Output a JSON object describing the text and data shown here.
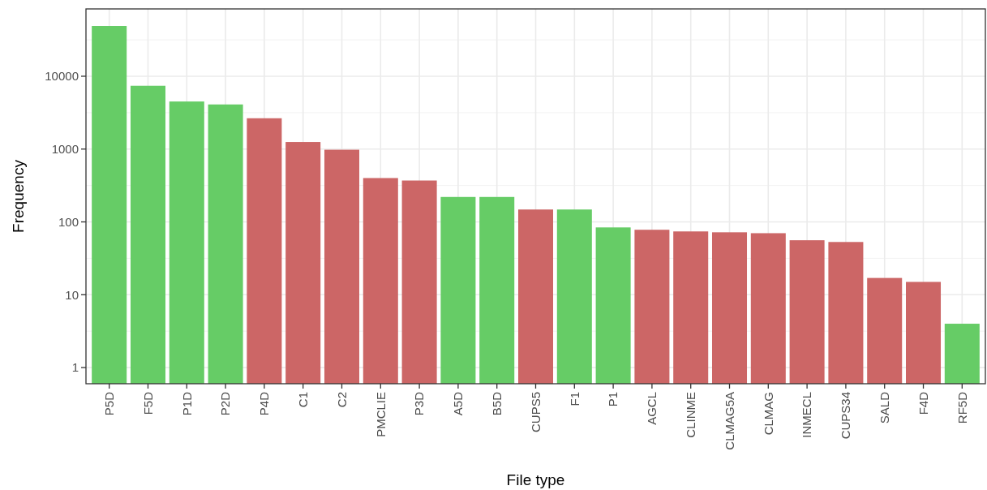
{
  "chart_data": {
    "type": "bar",
    "xlabel": "File type",
    "ylabel": "Frequency",
    "categories": [
      "P5D",
      "F5D",
      "P1D",
      "P2D",
      "P4D",
      "C1",
      "C2",
      "PMCLIE",
      "P3D",
      "A5D",
      "B5D",
      "CUPS5",
      "F1",
      "P1",
      "AGCL",
      "CLINME",
      "CLMAG5A",
      "CLMAG",
      "INMECL",
      "CUPS34",
      "SALD",
      "F4D",
      "RF5D"
    ],
    "values": [
      49000,
      7400,
      4500,
      4100,
      2650,
      1250,
      980,
      400,
      370,
      220,
      220,
      148,
      148,
      84,
      78,
      74,
      72,
      70,
      56,
      53,
      17,
      15,
      4
    ],
    "colors": [
      "#66cc66",
      "#66cc66",
      "#66cc66",
      "#66cc66",
      "#cc6666",
      "#cc6666",
      "#cc6666",
      "#cc6666",
      "#cc6666",
      "#66cc66",
      "#66cc66",
      "#cc6666",
      "#66cc66",
      "#66cc66",
      "#cc6666",
      "#cc6666",
      "#cc6666",
      "#cc6666",
      "#cc6666",
      "#cc6666",
      "#cc6666",
      "#cc6666",
      "#66cc66"
    ],
    "log": true,
    "ylim": [
      0.6,
      84000
    ],
    "yticks": [
      1,
      10,
      100,
      1000,
      10000
    ],
    "grid": true
  }
}
